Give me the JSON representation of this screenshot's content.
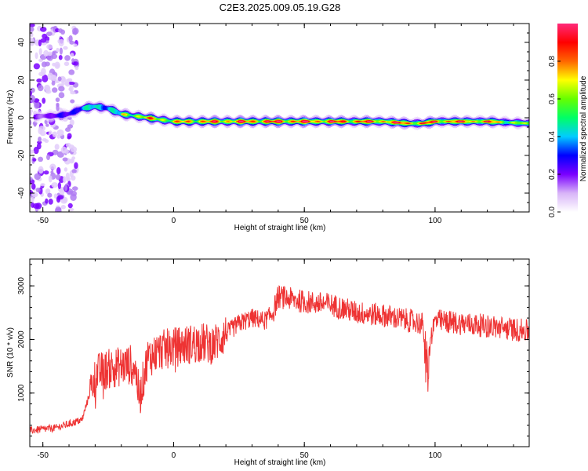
{
  "title": "C2E3.2025.009.05.19.G28",
  "chart_data": [
    {
      "type": "heatmap",
      "xlabel": "Height of straight line (km)",
      "ylabel": "Frequency (Hz)",
      "xlim": [
        -55,
        136
      ],
      "ylim": [
        -50,
        50
      ],
      "xticks": [
        "-50",
        "0",
        "50",
        "100"
      ],
      "yticks": [
        "-40",
        "-20",
        "0",
        "20",
        "40"
      ],
      "colorbar": {
        "label": "Normalized spectral amplitude",
        "range": [
          0,
          1
        ],
        "ticks": [
          "0.0",
          "0.2",
          "0.4",
          "0.6",
          "0.8"
        ],
        "colors": [
          "#ffffff",
          "#d8b4f8",
          "#7a00ff",
          "#0000ff",
          "#00ccff",
          "#00ff66",
          "#66ff00",
          "#ffff00",
          "#ff6600",
          "#ff0000",
          "#ff2a7a"
        ]
      },
      "ridge": {
        "x": [
          -55,
          -50,
          -45,
          -40,
          -35,
          -30,
          -25,
          -20,
          -15,
          -10,
          -5,
          0,
          5,
          10,
          20,
          40,
          60,
          80,
          90,
          95,
          100,
          120,
          136
        ],
        "frequency": [
          0,
          1,
          1,
          2,
          5,
          6,
          5,
          2,
          1,
          0,
          -1,
          -2,
          -2,
          -2,
          -2,
          -2,
          -2,
          -2,
          -3,
          -3,
          -2,
          -2,
          -3
        ],
        "amplitude": [
          0.3,
          0.25,
          0.3,
          0.45,
          0.55,
          0.75,
          0.7,
          0.65,
          0.7,
          0.75,
          0.75,
          0.7,
          0.8,
          0.82,
          0.85,
          0.92,
          0.9,
          0.88,
          0.9,
          0.85,
          0.9,
          0.85,
          0.55
        ]
      },
      "grid": false
    },
    {
      "type": "line",
      "xlabel": "Height of straight line (km)",
      "ylabel": "SNR (10 * v/v)",
      "xlim": [
        -55,
        136
      ],
      "ylim": [
        0,
        3500
      ],
      "xticks": [
        "-50",
        "0",
        "50",
        "100"
      ],
      "yticks": [
        "1000",
        "2000",
        "3000"
      ],
      "series": [
        {
          "color": "#ee3333",
          "x": [
            -55,
            -45,
            -35,
            -30,
            -25,
            -20,
            -15,
            -13,
            -10,
            -5,
            0,
            5,
            10,
            15,
            20,
            25,
            30,
            35,
            38,
            40,
            45,
            50,
            60,
            70,
            80,
            90,
            95,
            97,
            100,
            110,
            120,
            136
          ],
          "y": [
            300,
            350,
            500,
            1350,
            1450,
            1500,
            1550,
            900,
            1650,
            1800,
            1850,
            1900,
            1950,
            1900,
            2100,
            2300,
            2400,
            2350,
            2500,
            2800,
            2750,
            2700,
            2650,
            2500,
            2450,
            2350,
            2300,
            1800,
            2350,
            2300,
            2250,
            2150
          ]
        }
      ],
      "grid": false
    }
  ]
}
